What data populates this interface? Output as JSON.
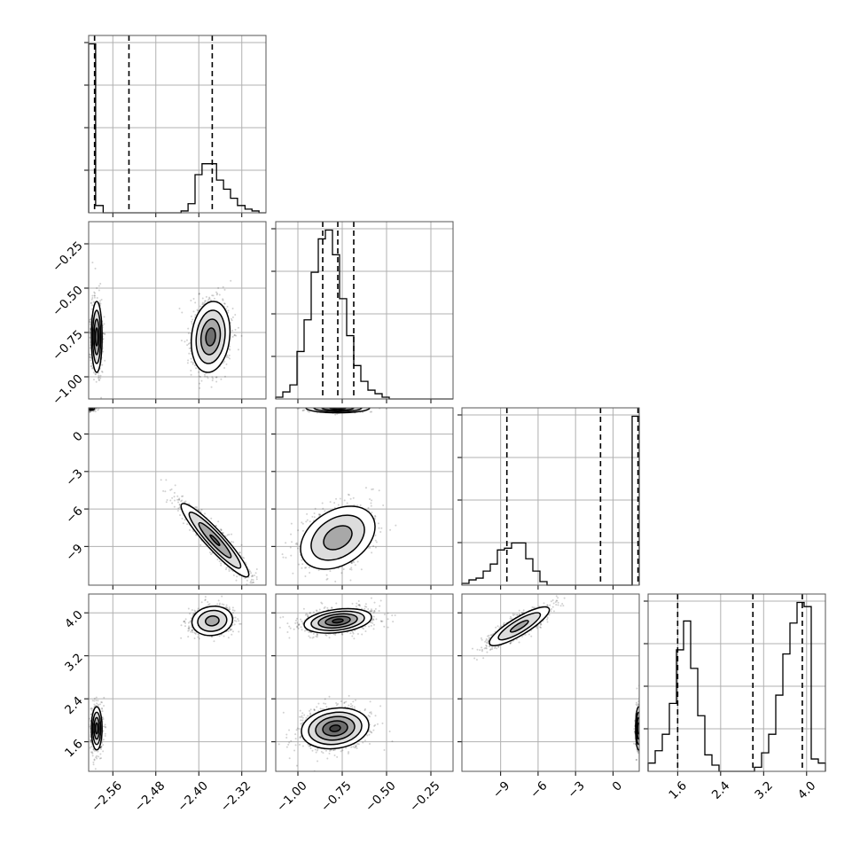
{
  "figure": {
    "type": "corner_plot"
  },
  "chart_data": {
    "type": "corner",
    "grid": true,
    "parameters": [
      {
        "range": [
          -2.605,
          -2.275
        ],
        "ticks": [
          -2.56,
          -2.48,
          -2.4,
          -2.32
        ],
        "tick_labels": [
          "−2.56",
          "−2.48",
          "−2.40",
          "−2.32"
        ]
      },
      {
        "range": [
          -1.125,
          -0.125
        ],
        "ticks": [
          -1.0,
          -0.75,
          -0.5,
          -0.25
        ],
        "tick_labels": [
          "−1.00",
          "−0.75",
          "−0.50",
          "−0.25"
        ]
      },
      {
        "range": [
          -12.1,
          2.1
        ],
        "ticks": [
          -9,
          -6,
          -3,
          0
        ],
        "tick_labels": [
          "−9",
          "−6",
          "−3",
          "0"
        ]
      },
      {
        "range": [
          1.05,
          4.35
        ],
        "ticks": [
          1.6,
          2.4,
          3.2,
          4.0
        ],
        "tick_labels": [
          "1.6",
          "2.4",
          "3.2",
          "4.0"
        ]
      }
    ],
    "histograms": [
      {
        "param": 0,
        "bins": [
          -2.605,
          -2.592,
          -2.578,
          -2.565,
          -2.552,
          -2.539,
          -2.526,
          -2.512,
          -2.499,
          -2.486,
          -2.473,
          -2.46,
          -2.446,
          -2.433,
          -2.42,
          -2.407,
          -2.394,
          -2.38,
          -2.367,
          -2.354,
          -2.341,
          -2.328,
          -2.314,
          -2.301,
          -2.288,
          -2.275
        ],
        "counts": [
          0.93,
          0.04,
          0,
          0,
          0,
          0,
          0,
          0,
          0,
          0,
          0,
          0,
          0,
          0.01,
          0.05,
          0.21,
          0.27,
          0.27,
          0.18,
          0.13,
          0.08,
          0.04,
          0.02,
          0.01,
          0
        ],
        "quantiles": [
          -2.594,
          -2.53,
          -2.375
        ]
      },
      {
        "param": 1,
        "bins": [
          -1.125,
          -1.085,
          -1.045,
          -1.005,
          -0.965,
          -0.925,
          -0.885,
          -0.845,
          -0.805,
          -0.765,
          -0.725,
          -0.685,
          -0.645,
          -0.605,
          -0.565,
          -0.525,
          -0.485,
          -0.445,
          -0.405,
          -0.365,
          -0.325,
          -0.285,
          -0.245,
          -0.205,
          -0.165,
          -0.125
        ],
        "counts": [
          0.01,
          0.04,
          0.08,
          0.27,
          0.45,
          0.72,
          0.91,
          0.96,
          0.82,
          0.57,
          0.36,
          0.19,
          0.1,
          0.05,
          0.03,
          0.01,
          0,
          0,
          0,
          0,
          0,
          0,
          0,
          0,
          0
        ],
        "quantiles": [
          -0.86,
          -0.775,
          -0.685
        ]
      },
      {
        "param": 2,
        "bins": [
          -12.1,
          -11.532,
          -10.964,
          -10.396,
          -9.828,
          -9.26,
          -8.692,
          -8.124,
          -7.556,
          -6.988,
          -6.42,
          -5.852,
          -5.284,
          -4.716,
          -4.148,
          -3.58,
          -3.012,
          -2.444,
          -1.876,
          -1.308,
          -0.74,
          -0.172,
          0.396,
          0.964,
          1.532,
          2.1
        ],
        "counts": [
          0.01,
          0.03,
          0.04,
          0.08,
          0.12,
          0.2,
          0.21,
          0.24,
          0.24,
          0.15,
          0.08,
          0.02,
          0,
          0,
          0,
          0,
          0,
          0,
          0,
          0,
          0,
          0,
          0,
          0,
          0.96
        ],
        "quantiles": [
          -8.5,
          -1.0,
          2.0
        ]
      },
      {
        "param": 3,
        "bins": [
          1.05,
          1.182,
          1.314,
          1.446,
          1.578,
          1.71,
          1.842,
          1.974,
          2.106,
          2.238,
          2.37,
          2.502,
          2.634,
          2.766,
          2.898,
          3.03,
          3.162,
          3.294,
          3.426,
          3.558,
          3.69,
          3.822,
          3.954,
          4.086,
          4.218,
          4.35
        ],
        "counts": [
          0.04,
          0.1,
          0.18,
          0.33,
          0.59,
          0.73,
          0.5,
          0.27,
          0.08,
          0.03,
          0,
          0,
          0,
          0,
          0,
          0.02,
          0.09,
          0.18,
          0.37,
          0.57,
          0.72,
          0.82,
          0.8,
          0.06,
          0.04
        ],
        "quantiles": [
          1.6,
          3.0,
          3.92
        ]
      }
    ],
    "panels": [
      {
        "x_param": 0,
        "y_param": 1,
        "modes": [
          {
            "cx": -2.59,
            "cy": -0.775,
            "sx": 0.005,
            "sy": 0.1,
            "rho": 0,
            "n": 330,
            "contours": [
              0.5,
              1,
              1.5,
              2
            ]
          },
          {
            "cx": -2.378,
            "cy": -0.775,
            "sx": 0.018,
            "sy": 0.1,
            "rho": 0.15,
            "n": 330,
            "contours": [
              0.5,
              1,
              1.5,
              2
            ]
          }
        ]
      },
      {
        "x_param": 0,
        "y_param": 2,
        "modes": [
          {
            "cx": -2.6,
            "cy": 2.1,
            "sx": 0.005,
            "sy": 0.15,
            "rho": 0,
            "n": 60,
            "contours": [
              0.6,
              1.2
            ]
          },
          {
            "cx": -2.37,
            "cy": -8.5,
            "sx": 0.03,
            "sy": 1.4,
            "rho": -0.93,
            "n": 400,
            "contours": [
              0.3,
              1.0,
              1.6,
              2.1
            ]
          }
        ]
      },
      {
        "x_param": 1,
        "y_param": 2,
        "modes": [
          {
            "cx": -0.775,
            "cy": 2.1,
            "sx": 0.09,
            "sy": 0.2,
            "rho": 0,
            "n": 130,
            "contours": [
              0.5,
              1.0,
              1.5,
              2.0
            ]
          },
          {
            "cx": -0.775,
            "cy": -8.3,
            "sx": 0.1,
            "sy": 1.2,
            "rho": 0.35,
            "n": 330,
            "contours": [
              0.8,
              1.5,
              2.1
            ]
          }
        ]
      },
      {
        "x_param": 0,
        "y_param": 3,
        "modes": [
          {
            "cx": -2.375,
            "cy": 3.85,
            "sx": 0.018,
            "sy": 0.13,
            "rho": 0.1,
            "n": 330,
            "contours": [
              0.7,
              1.5,
              2.1
            ]
          },
          {
            "cx": -2.59,
            "cy": 1.85,
            "sx": 0.005,
            "sy": 0.2,
            "rho": 0,
            "n": 330,
            "contours": [
              0.5,
              1,
              1.5,
              2
            ]
          }
        ]
      },
      {
        "x_param": 1,
        "y_param": 3,
        "modes": [
          {
            "cx": -0.775,
            "cy": 3.85,
            "sx": 0.1,
            "sy": 0.12,
            "rho": 0.3,
            "n": 330,
            "contours": [
              0.3,
              0.7,
              1.1,
              1.5,
              1.9
            ]
          },
          {
            "cx": -0.79,
            "cy": 1.85,
            "sx": 0.1,
            "sy": 0.2,
            "rho": 0.15,
            "n": 330,
            "contours": [
              0.3,
              0.7,
              1.1,
              1.5,
              1.9
            ]
          }
        ]
      },
      {
        "x_param": 2,
        "y_param": 3,
        "modes": [
          {
            "cx": -7.5,
            "cy": 3.75,
            "sx": 1.2,
            "sy": 0.18,
            "rho": 0.85,
            "n": 330,
            "contours": [
              0.6,
              1.4,
              2.0
            ]
          },
          {
            "cx": 2.05,
            "cy": 1.85,
            "sx": 0.12,
            "sy": 0.2,
            "rho": 0,
            "n": 150,
            "contours": [
              0.5,
              1,
              1.5,
              2
            ]
          }
        ]
      }
    ]
  }
}
